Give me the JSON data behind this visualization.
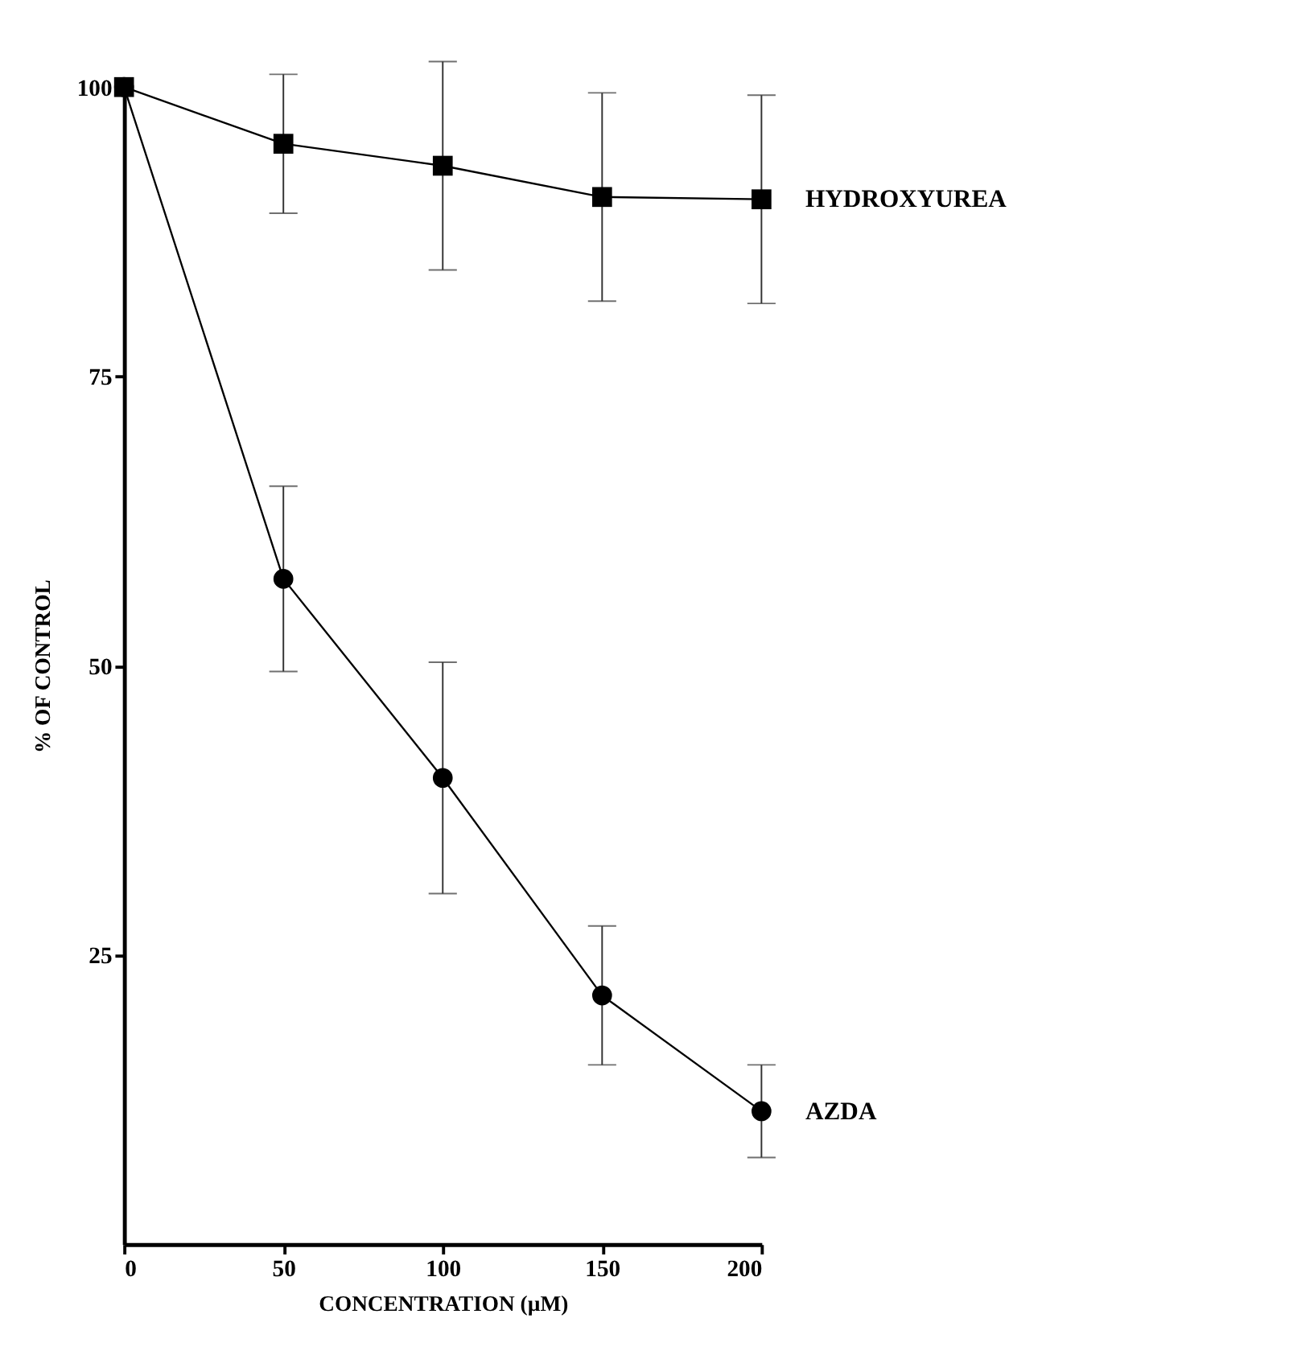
{
  "chart_data": {
    "type": "line",
    "xlabel": "CONCENTRATION (µM)",
    "ylabel": "%  OF CONTROL",
    "x": [
      0,
      50,
      100,
      150,
      200
    ],
    "series": [
      {
        "name": "AZDA",
        "color": "#000000",
        "marker": "circle",
        "values": [
          100,
          57.5,
          40.3,
          21.5,
          11.5
        ],
        "errors": [
          null,
          8,
          10,
          6,
          4
        ]
      },
      {
        "name": "HYDROXYUREA",
        "color": "#000000",
        "marker": "square",
        "values": [
          100,
          95.1,
          93.2,
          90.5,
          90.3
        ],
        "errors": [
          null,
          6,
          9,
          9,
          9
        ]
      }
    ],
    "xlim": [
      0,
      200
    ],
    "xticks": [
      0,
      50,
      100,
      150,
      200
    ],
    "ylim": [
      0,
      100
    ],
    "yticks": [
      25,
      50,
      75,
      100
    ],
    "grid": false,
    "legend": false,
    "line_style": "solid"
  }
}
